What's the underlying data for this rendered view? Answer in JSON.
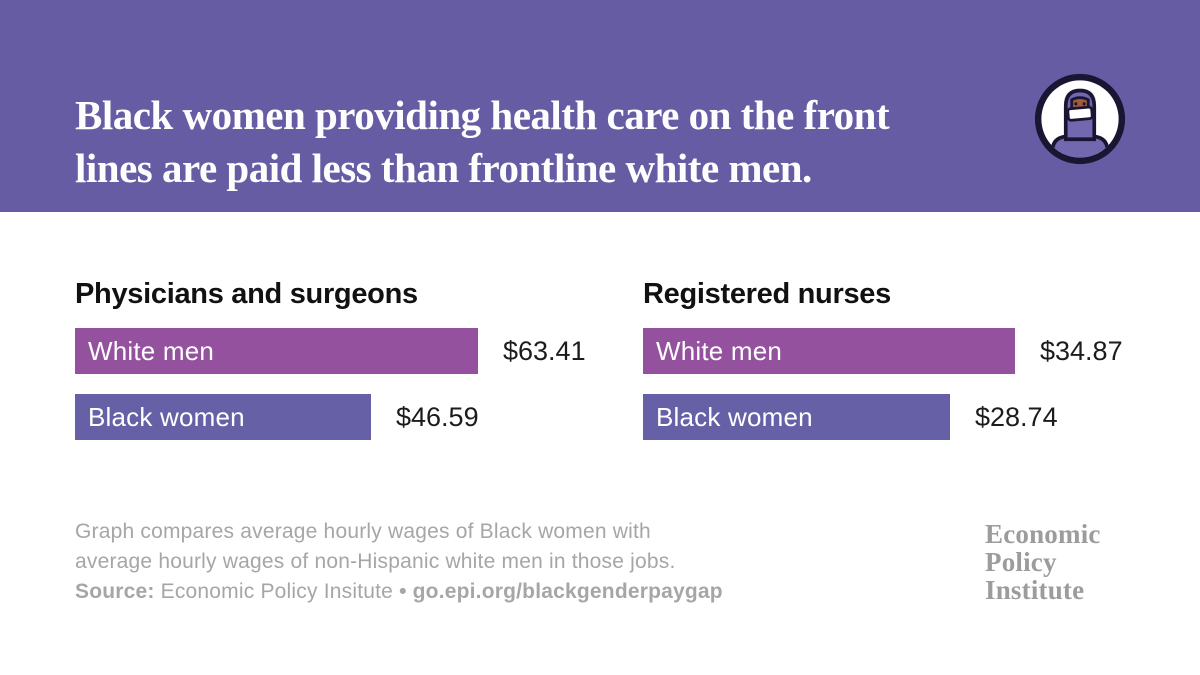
{
  "header": {
    "title_lines": [
      "Black women providing health care on the front",
      "lines are paid less than frontline white men."
    ],
    "band_color": "#665CA3",
    "icon_name": "masked-health-worker-icon"
  },
  "chart_data": {
    "type": "bar",
    "orientation": "horizontal",
    "value_unit": "average hourly wage, US dollars",
    "legend_position": "labels-inside-bars",
    "grid": false,
    "colors": {
      "white_men_bar": "#94519E",
      "black_women_bar": "#6660A7"
    },
    "groups": [
      {
        "title": "Physicians and surgeons",
        "bars": [
          {
            "label": "White men",
            "value": 63.41,
            "display": "$63.41",
            "color": "#94519E"
          },
          {
            "label": "Black women",
            "value": 46.59,
            "display": "$46.59",
            "color": "#6660A7"
          }
        ]
      },
      {
        "title": "Registered nurses",
        "bars": [
          {
            "label": "White men",
            "value": 34.87,
            "display": "$34.87",
            "color": "#94519E"
          },
          {
            "label": "Black women",
            "value": 28.74,
            "display": "$28.74",
            "color": "#6660A7"
          }
        ]
      }
    ]
  },
  "footer": {
    "note_lines": [
      "Graph compares average hourly wages of Black women with",
      "average hourly wages of non-Hispanic white men in those jobs."
    ],
    "source_label": "Source:",
    "source_text": " Economic Policy Insitute ",
    "source_bullet": "• ",
    "source_url": "go.epi.org/blackgenderpaygap",
    "logo_lines": [
      "Economic",
      "Policy",
      "Institute"
    ]
  }
}
